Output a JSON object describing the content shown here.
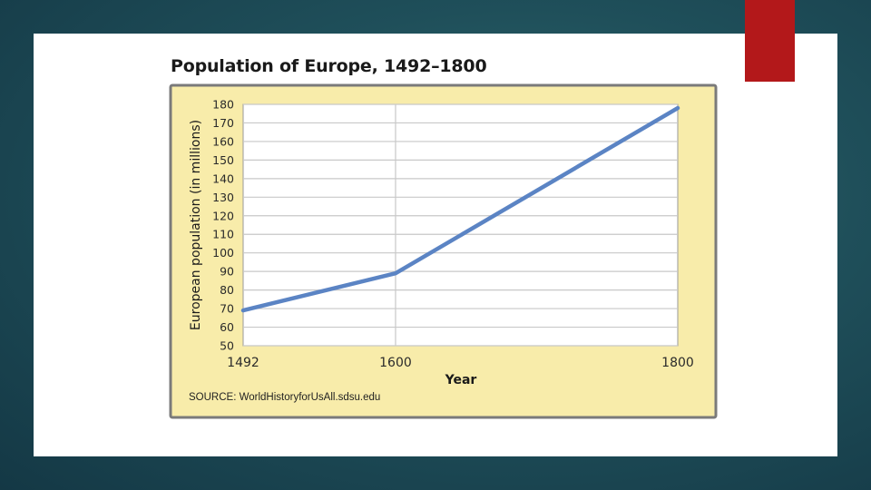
{
  "chart_data": {
    "type": "line",
    "title": "Population of Europe, 1492–1800",
    "xlabel": "Year",
    "ylabel": "European population (in millions)",
    "x": [
      1492,
      1600,
      1800
    ],
    "x_ticks": [
      1492,
      1600,
      1800
    ],
    "y_ticks": [
      50,
      60,
      70,
      80,
      90,
      100,
      110,
      120,
      130,
      140,
      150,
      160,
      170,
      180
    ],
    "ylim": [
      50,
      180
    ],
    "xlim": [
      1492,
      1800
    ],
    "grid": true,
    "series": [
      {
        "values": [
          69,
          89,
          178
        ]
      }
    ],
    "source": "SOURCE: WorldHistoryforUsAll.sdsu.edu"
  },
  "colors": {
    "panel_fill": "#f8ecaa",
    "panel_border": "#7a7a7a",
    "line": "#5b84c4",
    "grid": "#c8c8c8",
    "accent": "#b3181a"
  }
}
